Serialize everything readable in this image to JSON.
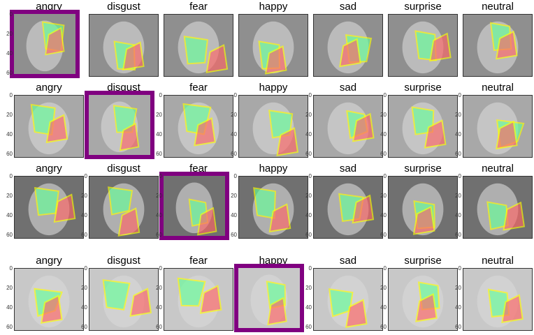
{
  "rows": [
    {
      "panels": [
        {
          "label": "angry",
          "selected": true
        },
        {
          "label": "disgust",
          "selected": false
        },
        {
          "label": "fear",
          "selected": false
        },
        {
          "label": "happy",
          "selected": false
        },
        {
          "label": "sad",
          "selected": false
        },
        {
          "label": "surprise",
          "selected": false
        },
        {
          "label": "neutral",
          "selected": false
        }
      ],
      "face_tone": "#8f8f8f"
    },
    {
      "panels": [
        {
          "label": "angry",
          "selected": false
        },
        {
          "label": "disgust",
          "selected": true
        },
        {
          "label": "fear",
          "selected": false
        },
        {
          "label": "happy",
          "selected": false
        },
        {
          "label": "sad",
          "selected": false
        },
        {
          "label": "surprise",
          "selected": false
        },
        {
          "label": "neutral",
          "selected": false
        }
      ],
      "face_tone": "#a8a8a8"
    },
    {
      "panels": [
        {
          "label": "angry",
          "selected": false
        },
        {
          "label": "disgust",
          "selected": false
        },
        {
          "label": "fear",
          "selected": true
        },
        {
          "label": "happy",
          "selected": false
        },
        {
          "label": "sad",
          "selected": false
        },
        {
          "label": "surprise",
          "selected": false
        },
        {
          "label": "neutral",
          "selected": false
        }
      ],
      "face_tone": "#707070"
    },
    {
      "panels": [
        {
          "label": "angry",
          "selected": false
        },
        {
          "label": "disgust",
          "selected": false
        },
        {
          "label": "fear",
          "selected": false
        },
        {
          "label": "happy",
          "selected": true
        },
        {
          "label": "sad",
          "selected": false
        },
        {
          "label": "surprise",
          "selected": false
        },
        {
          "label": "neutral",
          "selected": false
        }
      ],
      "face_tone": "#c8c8c8"
    }
  ],
  "yticks": [
    "0",
    "20",
    "40",
    "60"
  ],
  "colors": {
    "selection": "#800080",
    "positive": "#66ff99",
    "negative": "#ff6666",
    "boundary": "#ffff00"
  }
}
